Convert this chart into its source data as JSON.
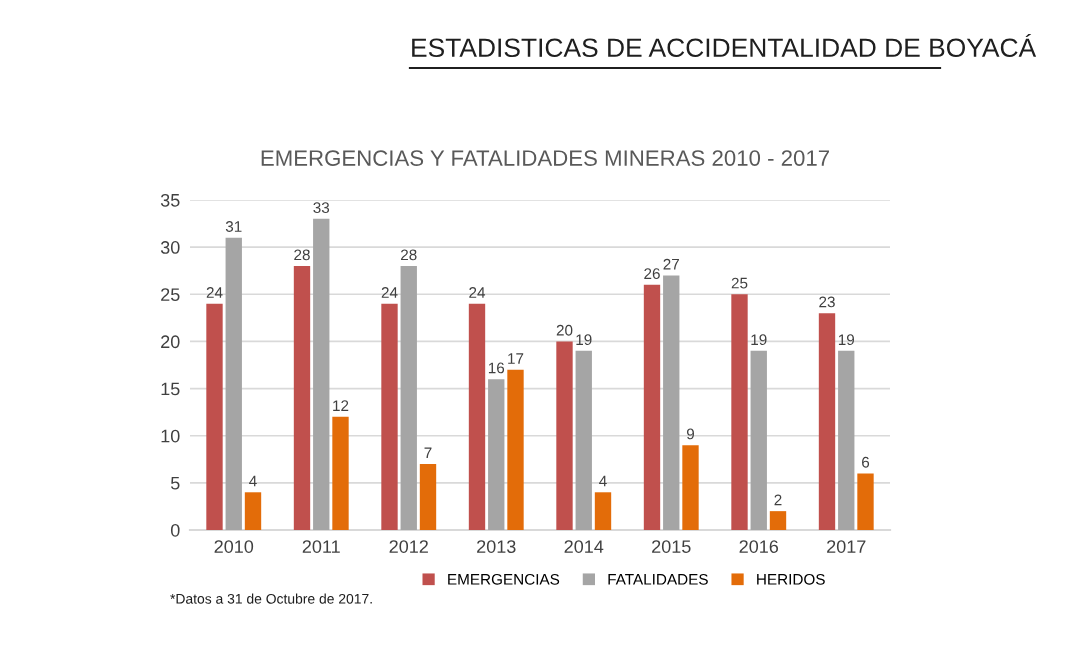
{
  "chart_data": {
    "type": "bar",
    "title": "ESTADISTICAS DE ACCIDENTALIDAD DE BOYACÁ",
    "subtitle": "EMERGENCIAS Y FATALIDADES MINERAS 2010 - 2017",
    "categories": [
      "2010",
      "2011",
      "2012",
      "2013",
      "2014",
      "2015",
      "2016",
      "2017"
    ],
    "series": [
      {
        "name": "EMERGENCIAS",
        "color": "#c0504d",
        "values": [
          24,
          28,
          24,
          24,
          20,
          26,
          25,
          23
        ]
      },
      {
        "name": "FATALIDADES",
        "color": "#a5a5a5",
        "values": [
          31,
          33,
          28,
          16,
          19,
          27,
          19,
          19
        ]
      },
      {
        "name": "HERIDOS",
        "color": "#e36c09",
        "values": [
          4,
          12,
          7,
          17,
          4,
          9,
          2,
          6
        ]
      }
    ],
    "ylim": [
      0,
      35
    ],
    "yticks": [
      0,
      5,
      10,
      15,
      20,
      25,
      30,
      35
    ],
    "grid": "y",
    "legend": "bottom",
    "data_labels": true,
    "annotations": [
      "*Datos a 31 de Octubre de 2017."
    ]
  }
}
